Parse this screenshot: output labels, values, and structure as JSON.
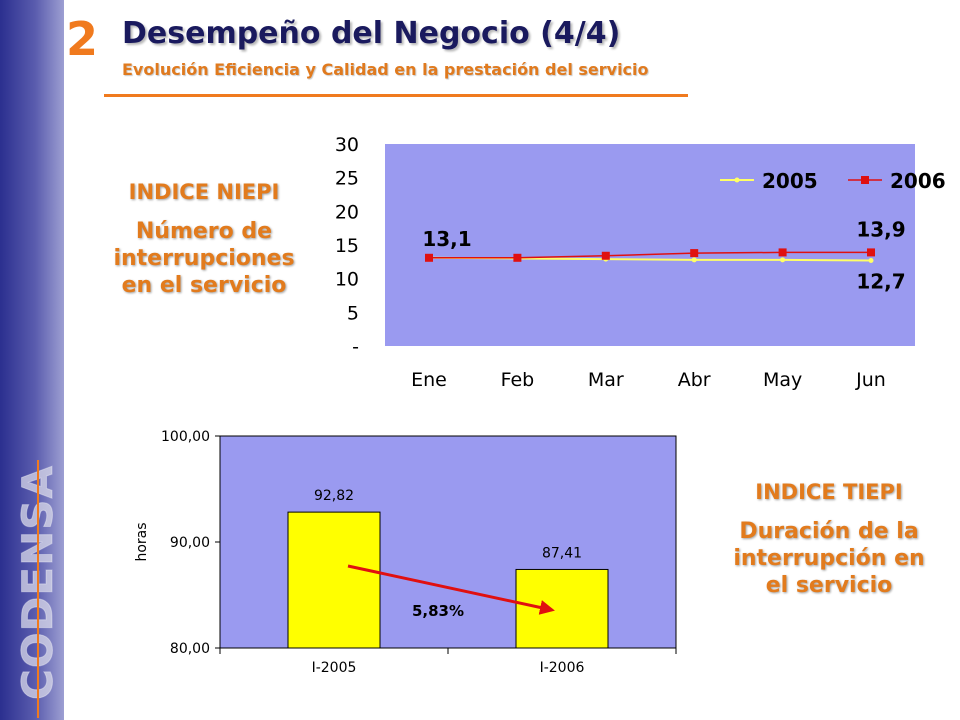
{
  "header": {
    "section_number": "2",
    "title": "Desempeño del Negocio (4/4)",
    "subtitle": "Evolución Eficiencia y Calidad en la prestación del servicio"
  },
  "brand": {
    "logo_text": "CODENSA"
  },
  "niepi_label": {
    "heading": "INDICE NIEPI",
    "line1": "Número de",
    "line2": "interrupciones",
    "line3": "en el servicio"
  },
  "tiepi_label": {
    "heading": "INDICE TIEPI",
    "line1": "Duración de la",
    "line2": "interrupción en",
    "line3": "el servicio"
  },
  "colors": {
    "plot_background": "#9a9af0",
    "series_2005": "#ffff66",
    "series_2006": "#e01010",
    "bar_fill": "#ffff00",
    "accent_orange": "#f07a1e",
    "arrow": "#e01010"
  },
  "chart_data": [
    {
      "type": "line",
      "title": "",
      "xlabel": "",
      "ylabel": "",
      "categories": [
        "Ene",
        "Feb",
        "Mar",
        "Abr",
        "May",
        "Jun"
      ],
      "y_ticks": [
        "30",
        "25",
        "20",
        "15",
        "10",
        "5",
        "-"
      ],
      "ylim": [
        0,
        30
      ],
      "grid": false,
      "legend_position": "top-right",
      "series": [
        {
          "name": "2005",
          "values": [
            13.1,
            13.0,
            12.9,
            12.8,
            12.8,
            12.7
          ]
        },
        {
          "name": "2006",
          "values": [
            13.1,
            13.1,
            13.4,
            13.8,
            13.9,
            13.9
          ]
        }
      ],
      "data_labels": [
        {
          "text": "13,1",
          "series": "2006",
          "index": 0
        },
        {
          "text": "13,9",
          "series": "2006",
          "index": 5
        },
        {
          "text": "12,7",
          "series": "2005",
          "index": 5
        }
      ]
    },
    {
      "type": "bar",
      "title": "",
      "xlabel": "",
      "ylabel": "horas",
      "categories": [
        "I-2005",
        "I-2006"
      ],
      "values": [
        92.82,
        87.41
      ],
      "value_labels": [
        "92,82",
        "87,41"
      ],
      "y_ticks": [
        "100,00",
        "90,00",
        "80,00"
      ],
      "ylim": [
        80,
        100
      ],
      "grid": false,
      "annotation": "5,83%"
    }
  ]
}
